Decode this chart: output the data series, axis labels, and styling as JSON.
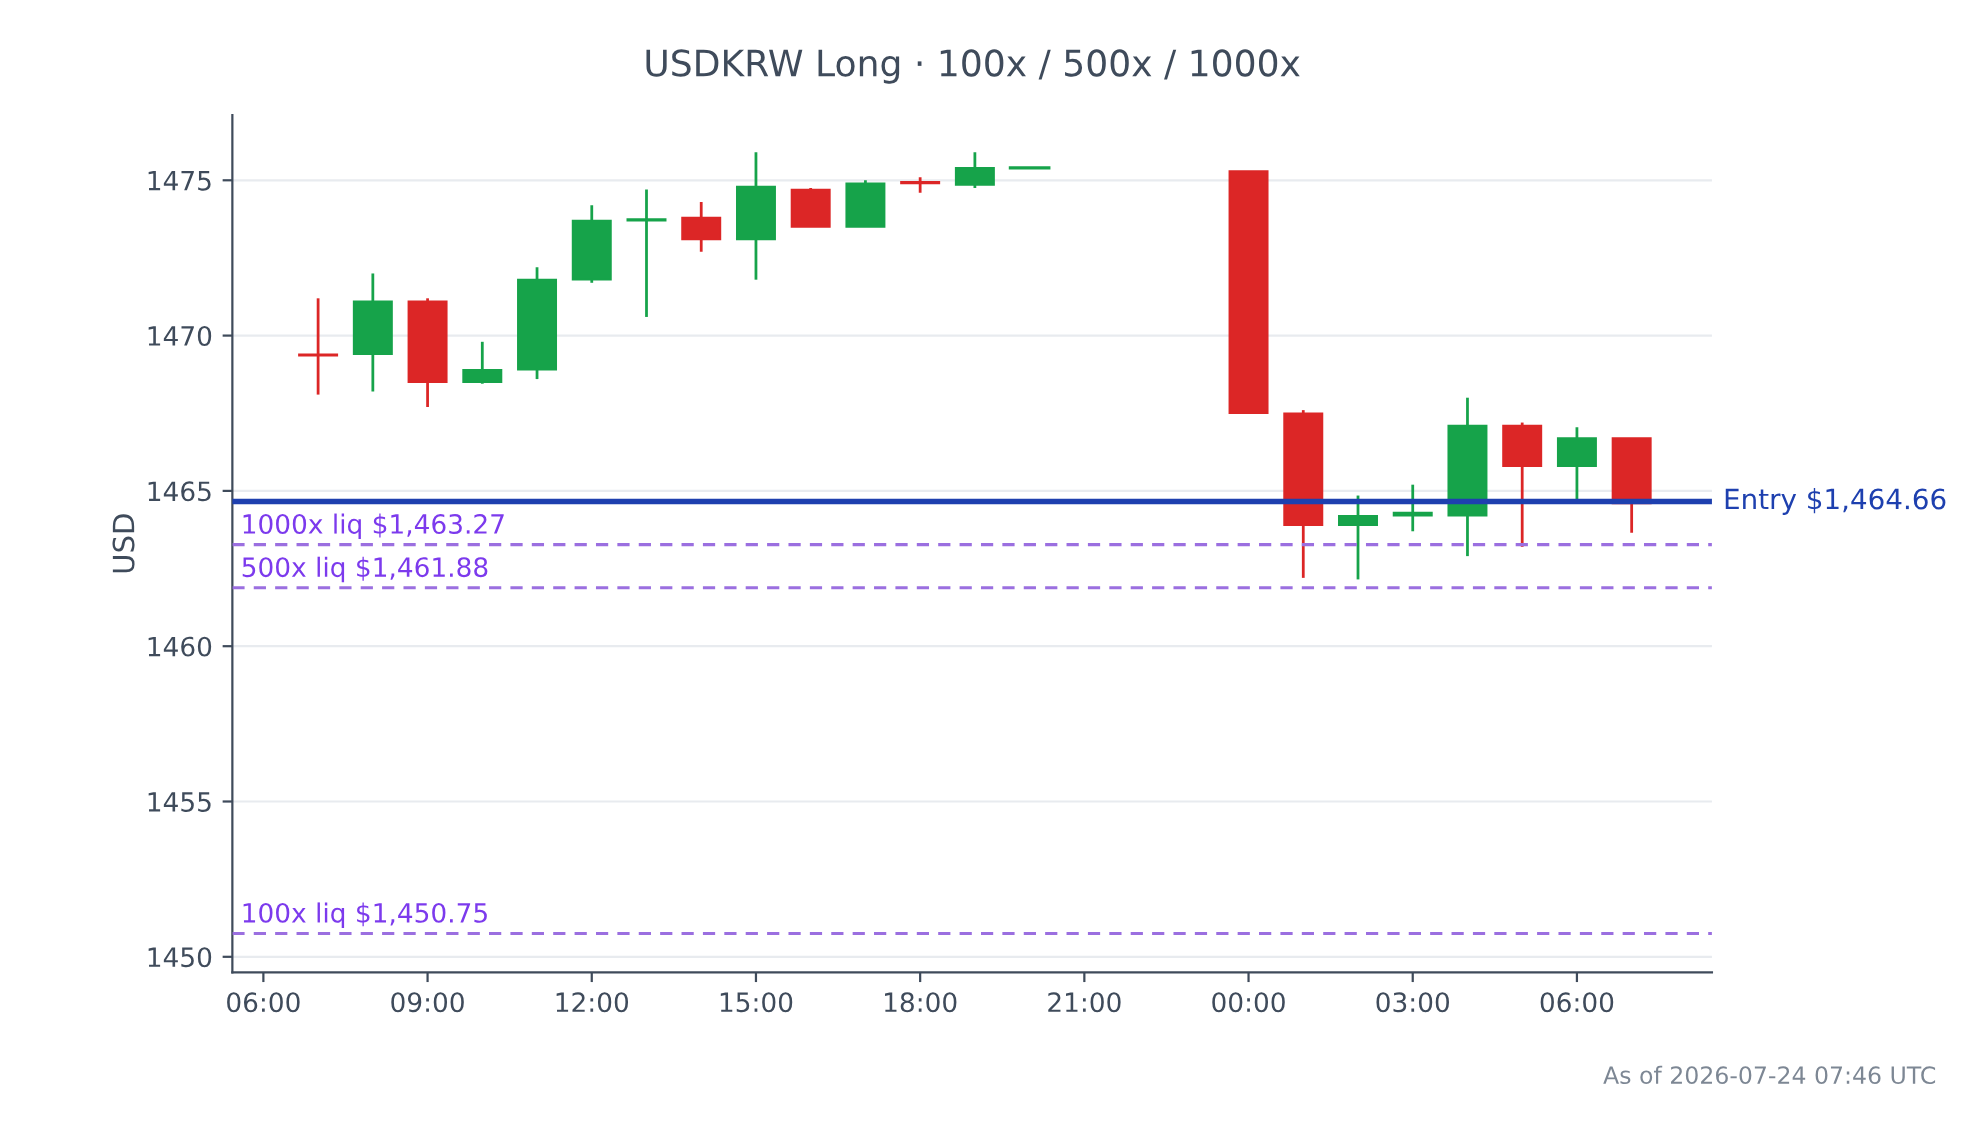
{
  "chart_data": {
    "type": "candlestick",
    "title": "USDKRW Long · 100x / 500x / 1000x",
    "ylabel": "USD",
    "x": [
      "2026-07-23T07:00",
      "2026-07-23T08:00",
      "2026-07-23T09:00",
      "2026-07-23T10:00",
      "2026-07-23T11:00",
      "2026-07-23T12:00",
      "2026-07-23T13:00",
      "2026-07-23T14:00",
      "2026-07-23T15:00",
      "2026-07-23T16:00",
      "2026-07-23T17:00",
      "2026-07-23T18:00",
      "2026-07-23T19:00",
      "2026-07-23T20:00",
      "2026-07-24T00:00",
      "2026-07-24T01:00",
      "2026-07-24T02:00",
      "2026-07-24T03:00",
      "2026-07-24T04:00",
      "2026-07-24T05:00",
      "2026-07-24T06:00",
      "2026-07-24T07:00"
    ],
    "ohlc": [
      [
        1469.4,
        1471.2,
        1468.1,
        1469.35
      ],
      [
        1469.4,
        1472.0,
        1468.2,
        1471.1
      ],
      [
        1471.1,
        1471.2,
        1467.7,
        1468.5
      ],
      [
        1468.5,
        1469.8,
        1468.45,
        1468.9
      ],
      [
        1468.9,
        1472.2,
        1468.6,
        1471.8
      ],
      [
        1471.8,
        1474.2,
        1471.7,
        1473.7
      ],
      [
        1473.7,
        1474.7,
        1470.6,
        1473.75
      ],
      [
        1473.8,
        1474.3,
        1472.7,
        1473.1
      ],
      [
        1473.1,
        1475.9,
        1471.8,
        1474.8
      ],
      [
        1474.7,
        1474.75,
        1473.5,
        1473.5
      ],
      [
        1473.5,
        1475.0,
        1473.5,
        1474.9
      ],
      [
        1474.95,
        1475.1,
        1474.6,
        1474.9
      ],
      [
        1474.85,
        1475.9,
        1474.75,
        1475.4
      ],
      [
        1475.4,
        1475.4,
        1475.4,
        1475.4
      ],
      [
        1475.3,
        1475.3,
        1467.5,
        1467.5
      ],
      [
        1467.5,
        1467.6,
        1462.2,
        1463.9
      ],
      [
        1463.9,
        1464.85,
        1462.15,
        1464.2
      ],
      [
        1464.2,
        1465.2,
        1463.7,
        1464.3
      ],
      [
        1464.2,
        1468.0,
        1462.9,
        1467.1
      ],
      [
        1467.1,
        1467.2,
        1463.2,
        1465.8
      ],
      [
        1465.8,
        1467.05,
        1464.6,
        1466.7
      ],
      [
        1466.7,
        1466.7,
        1463.65,
        1464.6
      ]
    ],
    "colors": [
      "#dc2626",
      "#16a34a",
      "#dc2626",
      "#16a34a",
      "#16a34a",
      "#16a34a",
      "#16a34a",
      "#dc2626",
      "#16a34a",
      "#dc2626",
      "#16a34a",
      "#dc2626",
      "#16a34a",
      "#16a34a",
      "#dc2626",
      "#dc2626",
      "#16a34a",
      "#16a34a",
      "#16a34a",
      "#dc2626",
      "#16a34a",
      "#dc2626"
    ],
    "xlim": [
      "2026-07-23T05:26",
      "2026-07-24T08:28"
    ],
    "xticks": [
      {
        "value": "2026-07-23T06:00",
        "label": "06:00"
      },
      {
        "value": "2026-07-23T09:00",
        "label": "09:00"
      },
      {
        "value": "2026-07-23T12:00",
        "label": "12:00"
      },
      {
        "value": "2026-07-23T15:00",
        "label": "15:00"
      },
      {
        "value": "2026-07-23T18:00",
        "label": "18:00"
      },
      {
        "value": "2026-07-23T21:00",
        "label": "21:00"
      },
      {
        "value": "2026-07-24T00:00",
        "label": "00:00"
      },
      {
        "value": "2026-07-24T03:00",
        "label": "03:00"
      },
      {
        "value": "2026-07-24T06:00",
        "label": "06:00"
      }
    ],
    "ylim": [
      1449.5,
      1477.1
    ],
    "yticks": [
      1450,
      1455,
      1460,
      1465,
      1470,
      1475
    ],
    "grid": "y",
    "ref_lines": [
      {
        "axis": "y",
        "value": 1464.66,
        "label": "Entry $1,464.66",
        "color": "#1e40af",
        "line_style": "solid"
      },
      {
        "axis": "y",
        "value": 1463.27,
        "label": "1000x liq $1,463.27",
        "color": "#9b6fe0",
        "line_style": "dashed"
      },
      {
        "axis": "y",
        "value": 1461.88,
        "label": "500x liq $1,461.88",
        "color": "#9b6fe0",
        "line_style": "dashed"
      },
      {
        "axis": "y",
        "value": 1450.75,
        "label": "100x liq $1,450.75",
        "color": "#9b6fe0",
        "line_style": "dashed"
      }
    ],
    "annotations": [
      "As of 2026-07-24 07:46 UTC"
    ]
  }
}
